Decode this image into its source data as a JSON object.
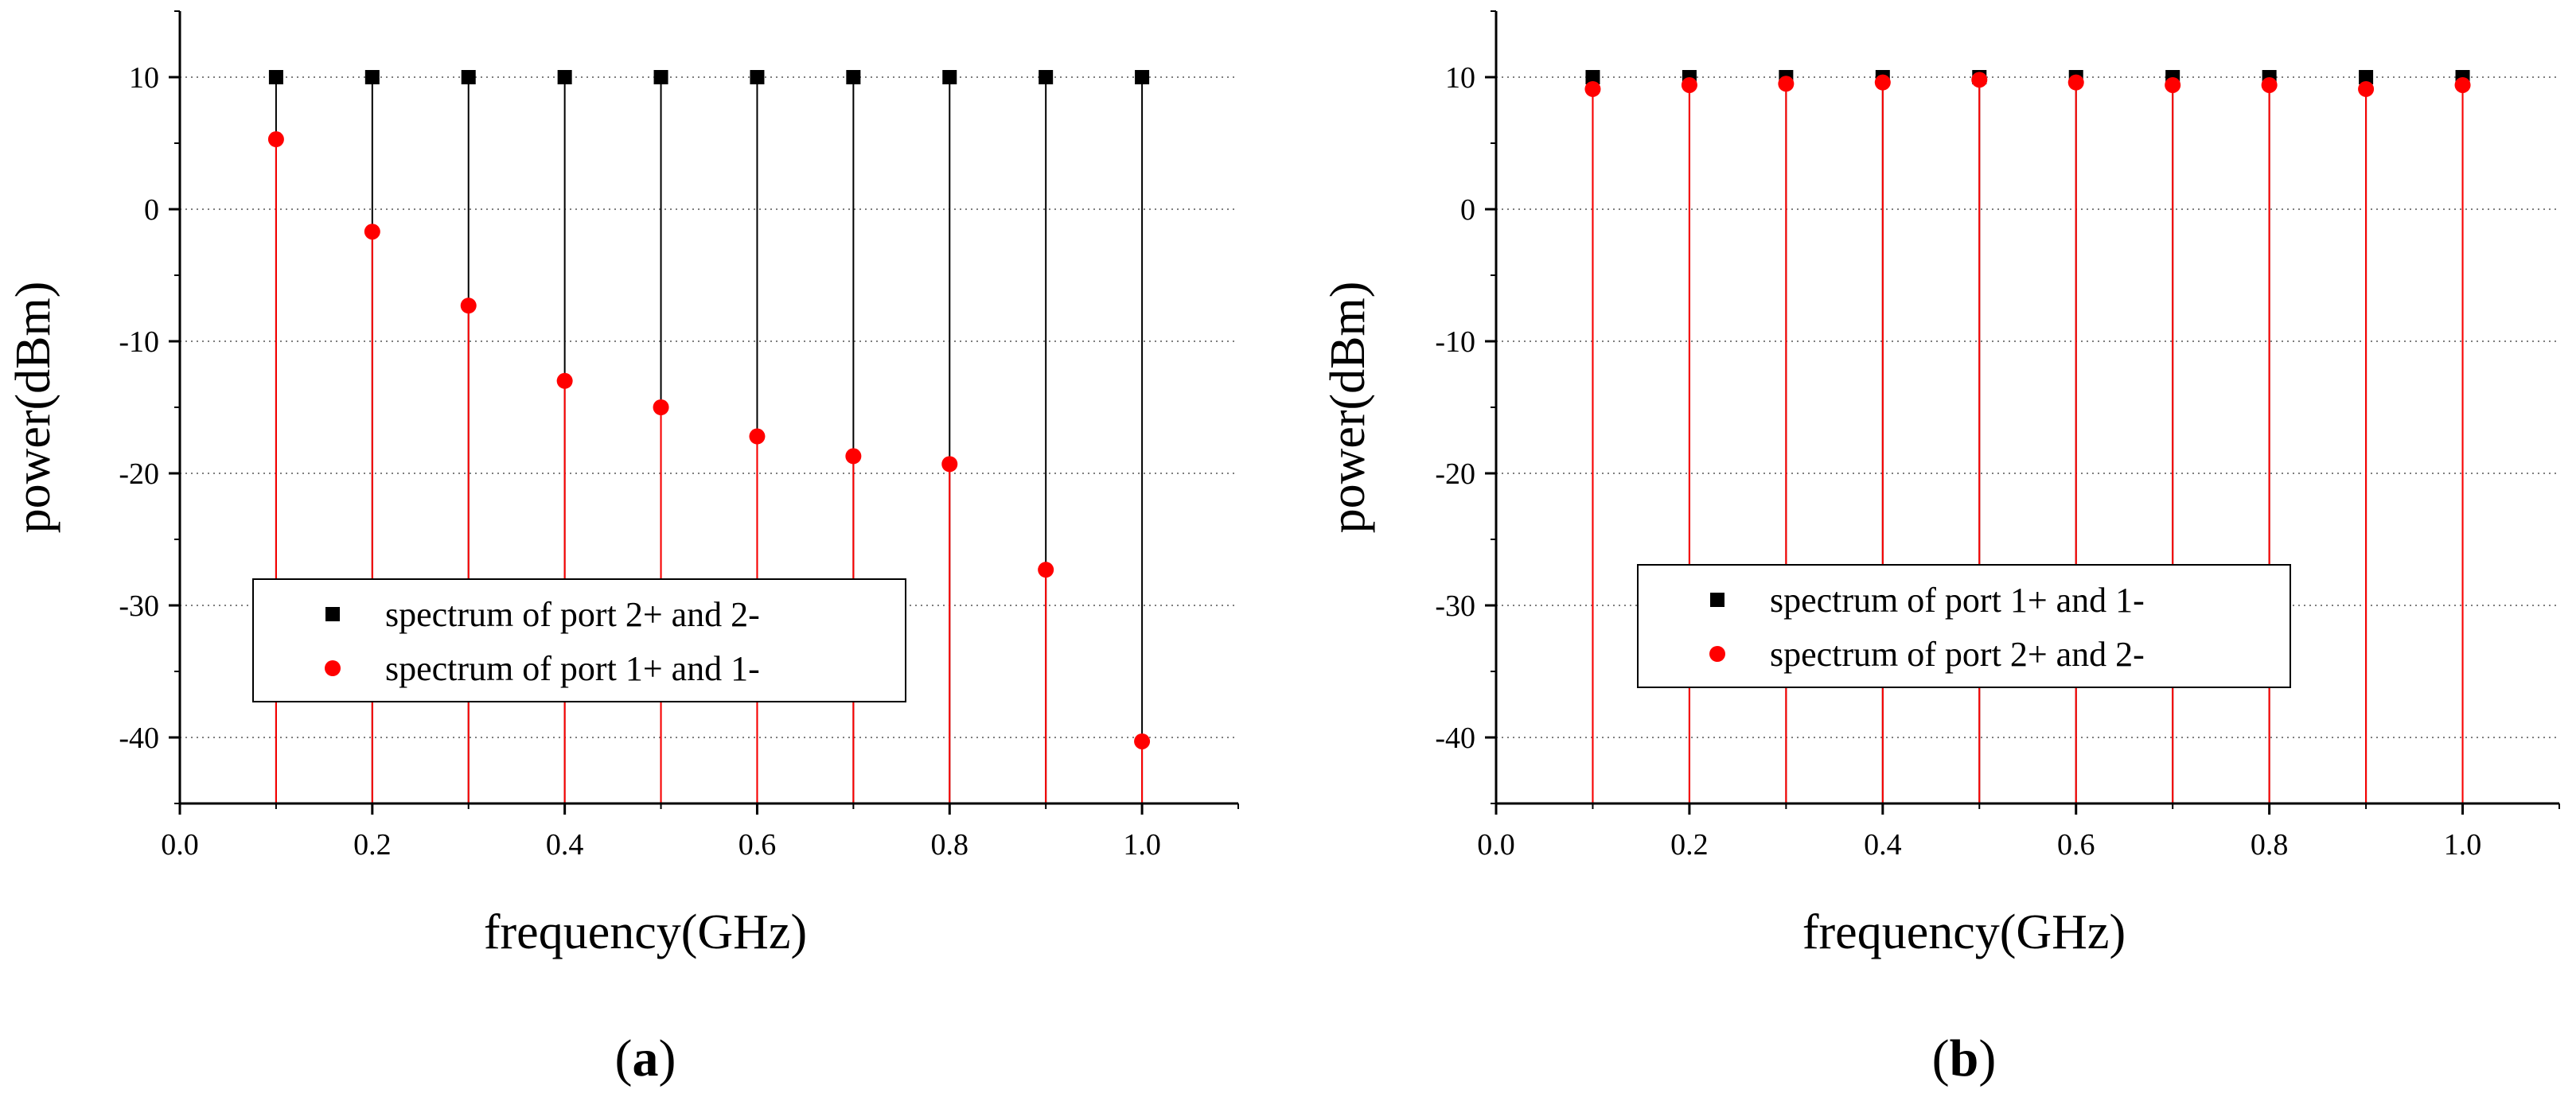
{
  "colors": {
    "series_black": "#000000",
    "series_red": "#ff0000",
    "grid": "#7f7f7f",
    "axis": "#000000"
  },
  "chart_data": [
    {
      "type": "scatter",
      "panel_label": "a",
      "xlabel": "frequency(GHz)",
      "ylabel": "power(dBm)",
      "xlim": [
        0.0,
        1.1
      ],
      "ylim": [
        -45,
        15
      ],
      "xticks": [
        0.0,
        0.2,
        0.4,
        0.6,
        0.8,
        1.0
      ],
      "xtick_labels": [
        "0.0",
        "0.2",
        "0.4",
        "0.6",
        "0.8",
        "1.0"
      ],
      "yticks": [
        10,
        0,
        -10,
        -20,
        -30,
        -40
      ],
      "ytick_labels": [
        "10",
        "0",
        "-10",
        "-20",
        "-30",
        "-40"
      ],
      "grid": "horizontal dotted",
      "drop_lines_to": -45,
      "legend_position": "lower-center",
      "x": [
        0.1,
        0.2,
        0.3,
        0.4,
        0.5,
        0.6,
        0.7,
        0.8,
        0.9,
        1.0
      ],
      "series": [
        {
          "name": "spectrum of port 2+ and 2-",
          "marker": "square",
          "color": "#000000",
          "values": [
            10,
            10,
            10,
            10,
            10,
            10,
            10,
            10,
            10,
            10
          ]
        },
        {
          "name": "spectrum of port 1+ and 1-",
          "marker": "circle",
          "color": "#ff0000",
          "values": [
            5.3,
            -1.7,
            -7.3,
            -13.0,
            -15.0,
            -17.2,
            -18.7,
            -19.3,
            -27.3,
            -40.3
          ]
        }
      ]
    },
    {
      "type": "scatter",
      "panel_label": "b",
      "xlabel": "frequency(GHz)",
      "ylabel": "power(dBm)",
      "xlim": [
        0.0,
        1.1
      ],
      "ylim": [
        -45,
        15
      ],
      "xticks": [
        0.0,
        0.2,
        0.4,
        0.6,
        0.8,
        1.0
      ],
      "xtick_labels": [
        "0.0",
        "0.2",
        "0.4",
        "0.6",
        "0.8",
        "1.0"
      ],
      "yticks": [
        10,
        0,
        -10,
        -20,
        -30,
        -40
      ],
      "ytick_labels": [
        "10",
        "0",
        "-10",
        "-20",
        "-30",
        "-40"
      ],
      "grid": "horizontal dotted",
      "drop_lines_to": -45,
      "legend_position": "lower-center",
      "x": [
        0.1,
        0.2,
        0.3,
        0.4,
        0.5,
        0.6,
        0.7,
        0.8,
        0.9,
        1.0
      ],
      "series": [
        {
          "name": "spectrum of port 1+ and 1-",
          "marker": "square",
          "color": "#000000",
          "values": [
            10,
            10,
            10,
            10,
            10,
            10,
            10,
            10,
            10,
            10
          ]
        },
        {
          "name": "spectrum of port 2+ and 2-",
          "marker": "circle",
          "color": "#ff0000",
          "values": [
            9.1,
            9.4,
            9.5,
            9.6,
            9.8,
            9.6,
            9.4,
            9.4,
            9.1,
            9.4
          ]
        }
      ]
    }
  ]
}
